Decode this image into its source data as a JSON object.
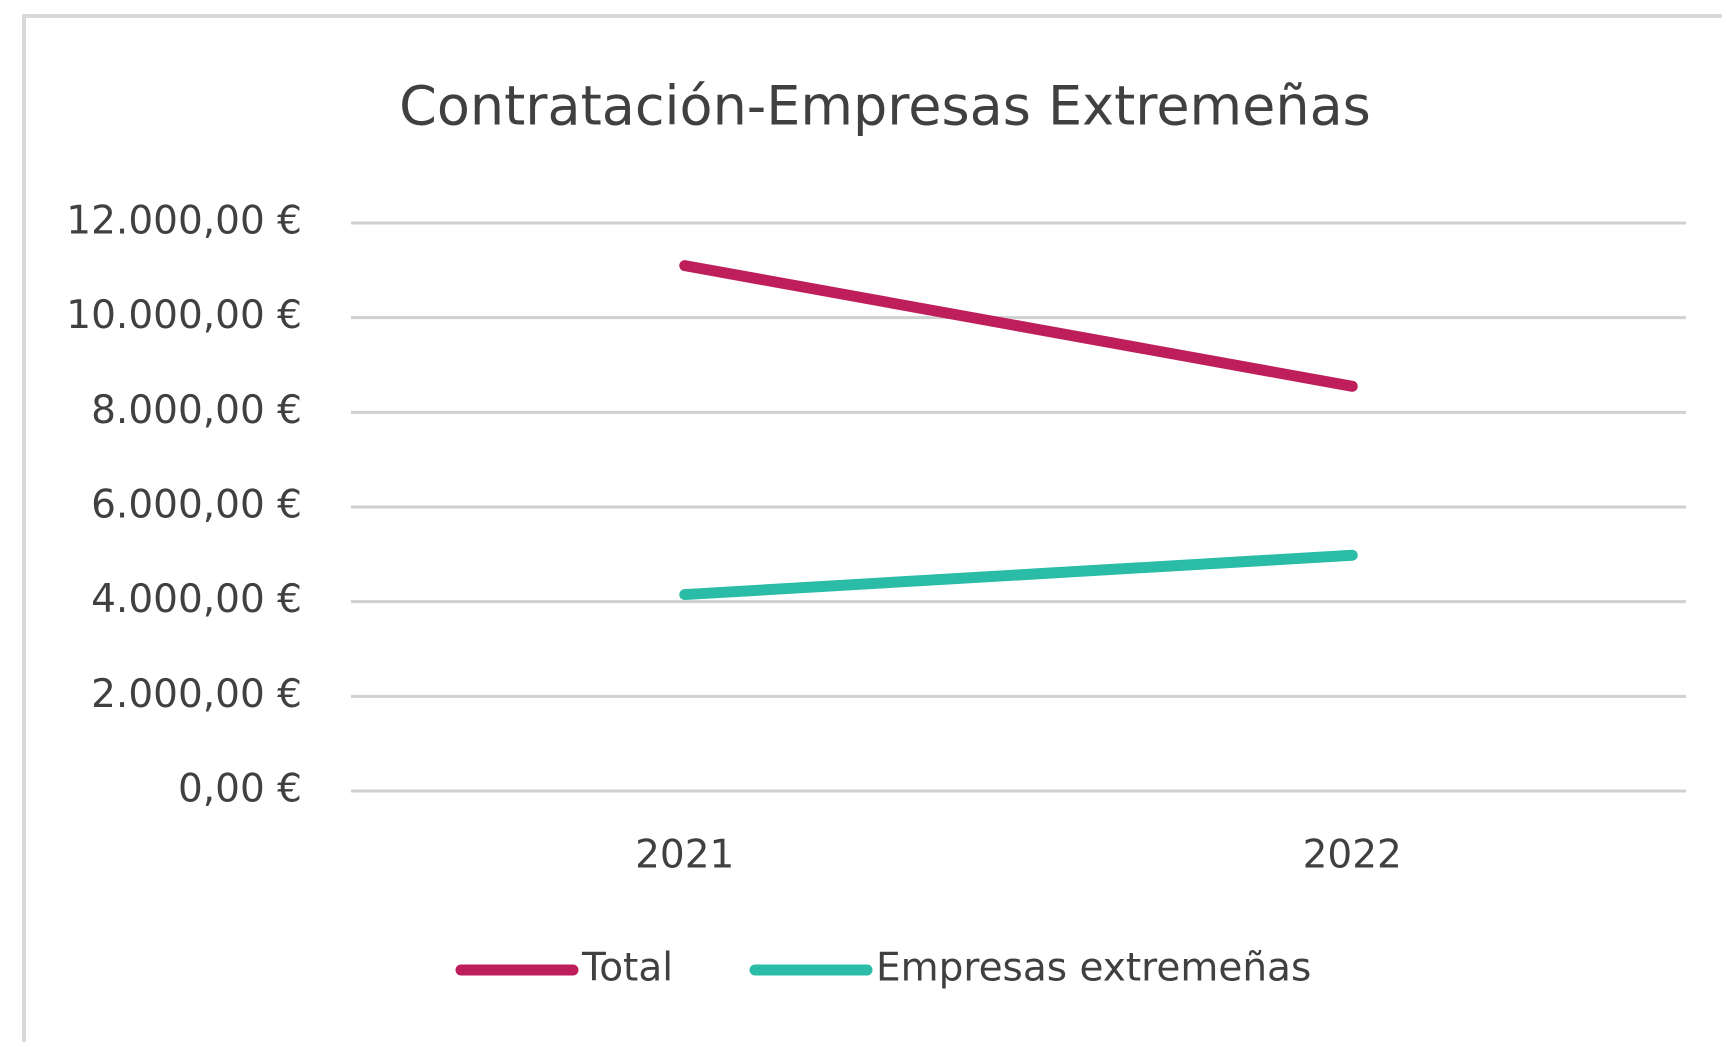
{
  "chart_data": {
    "type": "line",
    "title": "Contratación-Empresas Extremeñas",
    "categories": [
      "2021",
      "2022"
    ],
    "series": [
      {
        "name": "Total",
        "color": "#be1e5a",
        "values": [
          11100,
          8550
        ]
      },
      {
        "name": "Empresas extremeñas",
        "color": "#2bbca7",
        "values": [
          4150,
          4980
        ]
      }
    ],
    "ylim": [
      0,
      12000
    ],
    "yticks": [
      {
        "value": 0,
        "label": "0,00 €"
      },
      {
        "value": 2000,
        "label": "2.000,00 €"
      },
      {
        "value": 4000,
        "label": "4.000,00 €"
      },
      {
        "value": 6000,
        "label": "6.000,00 €"
      },
      {
        "value": 8000,
        "label": "8.000,00 €"
      },
      {
        "value": 10000,
        "label": "10.000,00 €"
      },
      {
        "value": 12000,
        "label": "12.000,00 €"
      }
    ],
    "grid": true,
    "legend": "bottom"
  }
}
